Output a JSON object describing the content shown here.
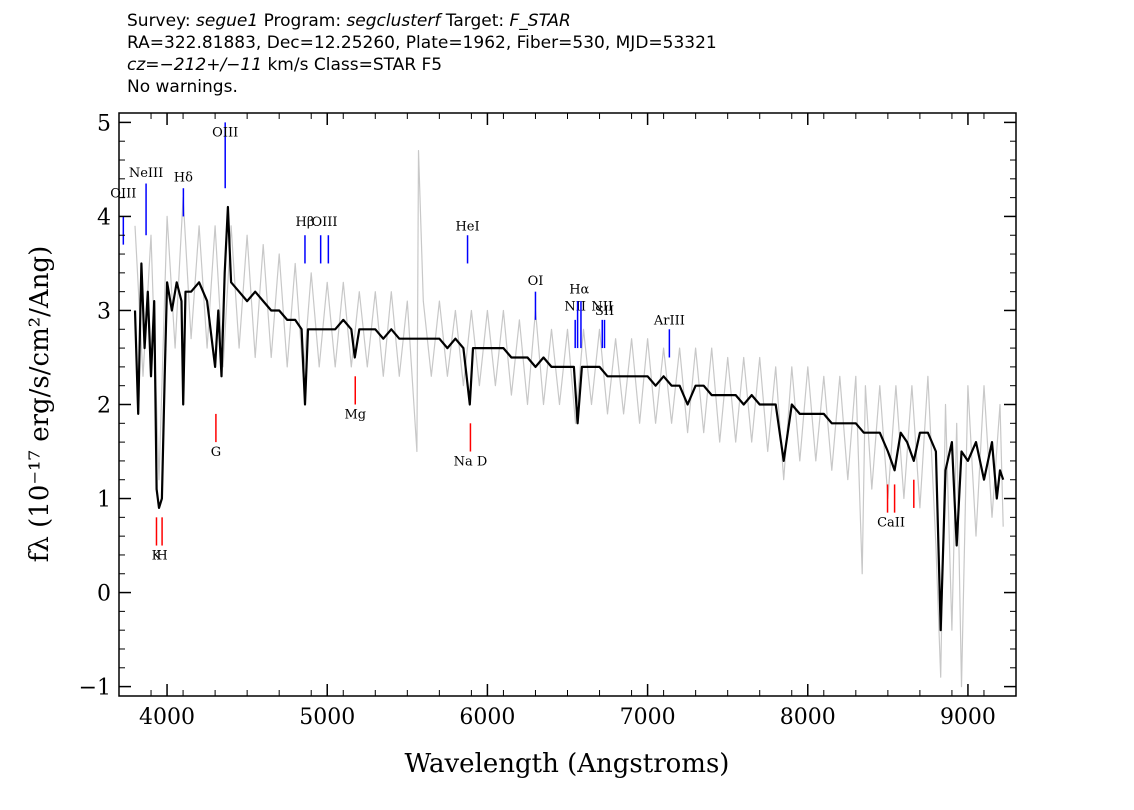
{
  "header": {
    "line1": {
      "survey_label": "Survey: ",
      "survey": "segue1",
      "program_label": " Program: ",
      "program": "segclusterf",
      "target_label": " Target: ",
      "target": "F_STAR"
    },
    "line2": "RA=322.81883, Dec=12.25260, Plate=1962, Fiber=530, MJD=53321",
    "line3": {
      "cz": "cz=−212+/−11",
      "rest": " km/s Class=STAR F5"
    },
    "line4": "No warnings."
  },
  "chart_data": {
    "type": "line",
    "xlabel": "Wavelength (Angstroms)",
    "ylabel": "fλ (10⁻¹⁷ erg/s/cm²/Ang)",
    "xlim": [
      3700,
      9300
    ],
    "ylim": [
      -1.1,
      5.1
    ],
    "x_ticks": [
      4000,
      5000,
      6000,
      7000,
      8000,
      9000
    ],
    "y_ticks": [
      -1,
      0,
      1,
      2,
      3,
      4,
      5
    ],
    "series": [
      {
        "role": "flux",
        "color": "#000000",
        "points": [
          [
            3800,
            3.0
          ],
          [
            3820,
            1.9
          ],
          [
            3840,
            3.5
          ],
          [
            3860,
            2.6
          ],
          [
            3880,
            3.2
          ],
          [
            3900,
            2.3
          ],
          [
            3920,
            3.1
          ],
          [
            3935,
            1.1
          ],
          [
            3950,
            0.9
          ],
          [
            3968,
            1.0
          ],
          [
            3985,
            2.3
          ],
          [
            4000,
            3.3
          ],
          [
            4030,
            3.0
          ],
          [
            4060,
            3.3
          ],
          [
            4090,
            3.1
          ],
          [
            4101,
            2.0
          ],
          [
            4115,
            3.2
          ],
          [
            4150,
            3.2
          ],
          [
            4200,
            3.3
          ],
          [
            4250,
            3.1
          ],
          [
            4300,
            2.4
          ],
          [
            4320,
            3.0
          ],
          [
            4340,
            2.3
          ],
          [
            4360,
            3.4
          ],
          [
            4380,
            4.1
          ],
          [
            4400,
            3.3
          ],
          [
            4450,
            3.2
          ],
          [
            4500,
            3.1
          ],
          [
            4550,
            3.2
          ],
          [
            4600,
            3.1
          ],
          [
            4650,
            3.0
          ],
          [
            4700,
            3.0
          ],
          [
            4750,
            2.9
          ],
          [
            4800,
            2.9
          ],
          [
            4840,
            2.8
          ],
          [
            4861,
            2.0
          ],
          [
            4880,
            2.8
          ],
          [
            4920,
            2.8
          ],
          [
            4960,
            2.8
          ],
          [
            5000,
            2.8
          ],
          [
            5050,
            2.8
          ],
          [
            5100,
            2.9
          ],
          [
            5150,
            2.8
          ],
          [
            5172,
            2.5
          ],
          [
            5200,
            2.8
          ],
          [
            5250,
            2.8
          ],
          [
            5300,
            2.8
          ],
          [
            5350,
            2.7
          ],
          [
            5400,
            2.8
          ],
          [
            5450,
            2.7
          ],
          [
            5500,
            2.7
          ],
          [
            5550,
            2.7
          ],
          [
            5600,
            2.7
          ],
          [
            5650,
            2.7
          ],
          [
            5700,
            2.7
          ],
          [
            5750,
            2.6
          ],
          [
            5800,
            2.7
          ],
          [
            5850,
            2.6
          ],
          [
            5890,
            2.0
          ],
          [
            5910,
            2.6
          ],
          [
            5950,
            2.6
          ],
          [
            6000,
            2.6
          ],
          [
            6050,
            2.6
          ],
          [
            6100,
            2.6
          ],
          [
            6150,
            2.5
          ],
          [
            6200,
            2.5
          ],
          [
            6250,
            2.5
          ],
          [
            6300,
            2.4
          ],
          [
            6350,
            2.5
          ],
          [
            6400,
            2.4
          ],
          [
            6450,
            2.4
          ],
          [
            6500,
            2.4
          ],
          [
            6540,
            2.4
          ],
          [
            6563,
            1.8
          ],
          [
            6590,
            2.4
          ],
          [
            6650,
            2.4
          ],
          [
            6700,
            2.4
          ],
          [
            6750,
            2.3
          ],
          [
            6800,
            2.3
          ],
          [
            6850,
            2.3
          ],
          [
            6900,
            2.3
          ],
          [
            6950,
            2.3
          ],
          [
            7000,
            2.3
          ],
          [
            7050,
            2.2
          ],
          [
            7100,
            2.3
          ],
          [
            7150,
            2.2
          ],
          [
            7200,
            2.2
          ],
          [
            7250,
            2.0
          ],
          [
            7300,
            2.2
          ],
          [
            7350,
            2.2
          ],
          [
            7400,
            2.1
          ],
          [
            7450,
            2.1
          ],
          [
            7500,
            2.1
          ],
          [
            7550,
            2.1
          ],
          [
            7600,
            2.0
          ],
          [
            7650,
            2.1
          ],
          [
            7700,
            2.0
          ],
          [
            7750,
            2.0
          ],
          [
            7800,
            2.0
          ],
          [
            7850,
            1.4
          ],
          [
            7900,
            2.0
          ],
          [
            7950,
            1.9
          ],
          [
            8000,
            1.9
          ],
          [
            8050,
            1.9
          ],
          [
            8100,
            1.9
          ],
          [
            8150,
            1.8
          ],
          [
            8200,
            1.8
          ],
          [
            8250,
            1.8
          ],
          [
            8300,
            1.8
          ],
          [
            8350,
            1.7
          ],
          [
            8400,
            1.7
          ],
          [
            8450,
            1.7
          ],
          [
            8500,
            1.5
          ],
          [
            8542,
            1.3
          ],
          [
            8580,
            1.7
          ],
          [
            8620,
            1.6
          ],
          [
            8662,
            1.4
          ],
          [
            8700,
            1.7
          ],
          [
            8750,
            1.7
          ],
          [
            8800,
            1.5
          ],
          [
            8830,
            -0.4
          ],
          [
            8860,
            1.3
          ],
          [
            8900,
            1.6
          ],
          [
            8930,
            0.5
          ],
          [
            8960,
            1.5
          ],
          [
            9000,
            1.4
          ],
          [
            9050,
            1.6
          ],
          [
            9100,
            1.2
          ],
          [
            9150,
            1.6
          ],
          [
            9180,
            1.0
          ],
          [
            9200,
            1.3
          ],
          [
            9220,
            1.2
          ]
        ]
      },
      {
        "role": "noise",
        "color": "#c8c8c8",
        "points": [
          [
            3800,
            3.9
          ],
          [
            3850,
            2.3
          ],
          [
            3900,
            3.8
          ],
          [
            3950,
            1.2
          ],
          [
            4000,
            4.0
          ],
          [
            4050,
            2.6
          ],
          [
            4100,
            4.2
          ],
          [
            4150,
            2.7
          ],
          [
            4200,
            3.9
          ],
          [
            4250,
            2.6
          ],
          [
            4300,
            3.9
          ],
          [
            4350,
            2.4
          ],
          [
            4400,
            3.9
          ],
          [
            4450,
            2.6
          ],
          [
            4500,
            3.8
          ],
          [
            4550,
            2.5
          ],
          [
            4600,
            3.7
          ],
          [
            4650,
            2.5
          ],
          [
            4700,
            3.6
          ],
          [
            4750,
            2.4
          ],
          [
            4800,
            3.5
          ],
          [
            4850,
            2.3
          ],
          [
            4900,
            3.4
          ],
          [
            4950,
            2.4
          ],
          [
            5000,
            3.3
          ],
          [
            5050,
            2.4
          ],
          [
            5100,
            3.3
          ],
          [
            5150,
            2.4
          ],
          [
            5200,
            3.2
          ],
          [
            5250,
            2.4
          ],
          [
            5300,
            3.2
          ],
          [
            5350,
            2.3
          ],
          [
            5400,
            3.2
          ],
          [
            5450,
            2.3
          ],
          [
            5500,
            3.1
          ],
          [
            5560,
            1.5
          ],
          [
            5570,
            4.7
          ],
          [
            5600,
            3.1
          ],
          [
            5650,
            2.3
          ],
          [
            5700,
            3.1
          ],
          [
            5750,
            2.3
          ],
          [
            5800,
            3.0
          ],
          [
            5850,
            2.2
          ],
          [
            5900,
            3.0
          ],
          [
            5950,
            2.2
          ],
          [
            6000,
            3.0
          ],
          [
            6050,
            2.2
          ],
          [
            6100,
            3.0
          ],
          [
            6150,
            2.1
          ],
          [
            6200,
            2.9
          ],
          [
            6250,
            2.0
          ],
          [
            6300,
            3.0
          ],
          [
            6350,
            2.0
          ],
          [
            6400,
            2.8
          ],
          [
            6450,
            2.0
          ],
          [
            6500,
            2.8
          ],
          [
            6550,
            1.8
          ],
          [
            6600,
            2.8
          ],
          [
            6650,
            2.0
          ],
          [
            6700,
            2.8
          ],
          [
            6750,
            1.9
          ],
          [
            6800,
            2.7
          ],
          [
            6850,
            1.9
          ],
          [
            6900,
            2.7
          ],
          [
            6950,
            1.8
          ],
          [
            7000,
            2.7
          ],
          [
            7050,
            1.8
          ],
          [
            7100,
            2.6
          ],
          [
            7150,
            1.8
          ],
          [
            7200,
            2.6
          ],
          [
            7250,
            1.7
          ],
          [
            7300,
            2.6
          ],
          [
            7350,
            1.7
          ],
          [
            7400,
            2.6
          ],
          [
            7450,
            1.6
          ],
          [
            7500,
            2.5
          ],
          [
            7550,
            1.6
          ],
          [
            7600,
            2.5
          ],
          [
            7650,
            1.6
          ],
          [
            7700,
            2.5
          ],
          [
            7750,
            1.5
          ],
          [
            7800,
            2.4
          ],
          [
            7850,
            1.2
          ],
          [
            7900,
            2.4
          ],
          [
            7950,
            1.4
          ],
          [
            8000,
            2.4
          ],
          [
            8050,
            1.4
          ],
          [
            8100,
            2.3
          ],
          [
            8150,
            1.3
          ],
          [
            8200,
            2.3
          ],
          [
            8250,
            1.2
          ],
          [
            8300,
            2.3
          ],
          [
            8340,
            0.2
          ],
          [
            8360,
            2.2
          ],
          [
            8400,
            1.1
          ],
          [
            8450,
            2.2
          ],
          [
            8500,
            1.0
          ],
          [
            8550,
            2.2
          ],
          [
            8600,
            1.0
          ],
          [
            8650,
            2.2
          ],
          [
            8700,
            0.9
          ],
          [
            8750,
            2.3
          ],
          [
            8800,
            0.5
          ],
          [
            8830,
            -0.9
          ],
          [
            8860,
            2.0
          ],
          [
            8900,
            -0.4
          ],
          [
            8930,
            1.8
          ],
          [
            8960,
            -1.0
          ],
          [
            9000,
            2.2
          ],
          [
            9050,
            0.6
          ],
          [
            9100,
            2.2
          ],
          [
            9150,
            0.8
          ],
          [
            9200,
            2.0
          ],
          [
            9220,
            0.7
          ]
        ]
      }
    ],
    "emission_lines": [
      {
        "label": "OIII",
        "x": [
          3727
        ],
        "y": [
          3.7,
          4.0
        ],
        "label_y": 4.2
      },
      {
        "label": "NeIII",
        "x": [
          3869
        ],
        "y": [
          3.8,
          4.35
        ],
        "label_y": 4.42
      },
      {
        "label": "Hδ",
        "x": [
          4102
        ],
        "y": [
          4.0,
          4.3
        ],
        "label_y": 4.37
      },
      {
        "label": "OIII",
        "x": [
          4363
        ],
        "y": [
          4.3,
          5.0
        ],
        "label_y": 4.85
      },
      {
        "label": "Hβ",
        "x": [
          4861
        ],
        "y": [
          3.5,
          3.8
        ],
        "label_y": 3.9
      },
      {
        "label": "OIII",
        "x": [
          4959,
          5007
        ],
        "y": [
          3.5,
          3.8
        ],
        "label_y": 3.9
      },
      {
        "label": "HeI",
        "x": [
          5876
        ],
        "y": [
          3.5,
          3.8
        ],
        "label_y": 3.85
      },
      {
        "label": "OI",
        "x": [
          6300
        ],
        "y": [
          2.9,
          3.2
        ],
        "label_y": 3.27
      },
      {
        "label": "NII",
        "x": [
          6548
        ],
        "y": [
          2.6,
          2.9
        ],
        "label_y": 3.0
      },
      {
        "label": "Hα",
        "x": [
          6563,
          6584
        ],
        "y": [
          2.6,
          3.1
        ],
        "label_y": 3.18
      },
      {
        "label": "NII",
        "x": [
          6717
        ],
        "y": [
          2.6,
          2.9
        ],
        "label_y": 3.0
      },
      {
        "label": "SII",
        "x": [
          6731
        ],
        "y": [
          2.6,
          2.9
        ],
        "label_y": 2.95
      },
      {
        "label": "ArIII",
        "x": [
          7136
        ],
        "y": [
          2.5,
          2.8
        ],
        "label_y": 2.85
      }
    ],
    "absorption_lines": [
      {
        "label": "K",
        "x": [
          3934
        ],
        "y": [
          0.5,
          0.8
        ],
        "label_y": 0.35
      },
      {
        "label": "H",
        "x": [
          3969
        ],
        "y": [
          0.5,
          0.8
        ],
        "label_y": 0.35
      },
      {
        "label": "G",
        "x": [
          4305
        ],
        "y": [
          1.6,
          1.9
        ],
        "label_y": 1.45
      },
      {
        "label": "Mg",
        "x": [
          5175
        ],
        "y": [
          2.0,
          2.3
        ],
        "label_y": 1.85
      },
      {
        "label": "Na D",
        "x": [
          5894
        ],
        "y": [
          1.5,
          1.8
        ],
        "label_y": 1.35
      },
      {
        "label": "CaII",
        "x": [
          8498,
          8542
        ],
        "y": [
          0.85,
          1.15
        ],
        "label_y": 0.7
      },
      {
        "label": "",
        "x": [
          8662
        ],
        "y": [
          0.9,
          1.2
        ],
        "label_y": 0
      }
    ],
    "line_colors": {
      "emission": "#0000ff",
      "absorption": "#ff0000"
    }
  }
}
